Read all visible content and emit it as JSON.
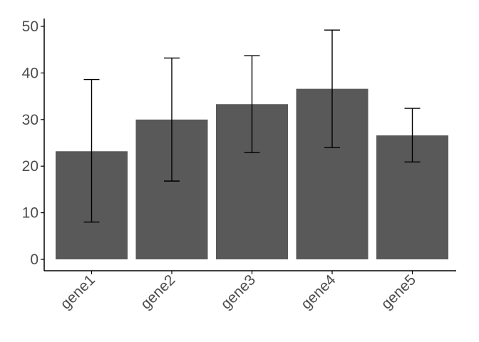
{
  "chart_data": {
    "type": "bar",
    "categories": [
      "gene1",
      "gene2",
      "gene3",
      "gene4",
      "gene5"
    ],
    "values": [
      23.2,
      30.0,
      33.3,
      36.6,
      26.6
    ],
    "error_low": [
      8.0,
      16.8,
      22.9,
      24.0,
      20.9
    ],
    "error_high": [
      38.6,
      43.2,
      43.7,
      49.2,
      32.4
    ],
    "ylim": [
      0,
      50
    ],
    "yticks": [
      0,
      10,
      20,
      30,
      40,
      50
    ],
    "xlabel": "",
    "ylabel": "",
    "title": "",
    "grid": false,
    "bar_color": "#595959",
    "x_tick_rotation": "45"
  }
}
